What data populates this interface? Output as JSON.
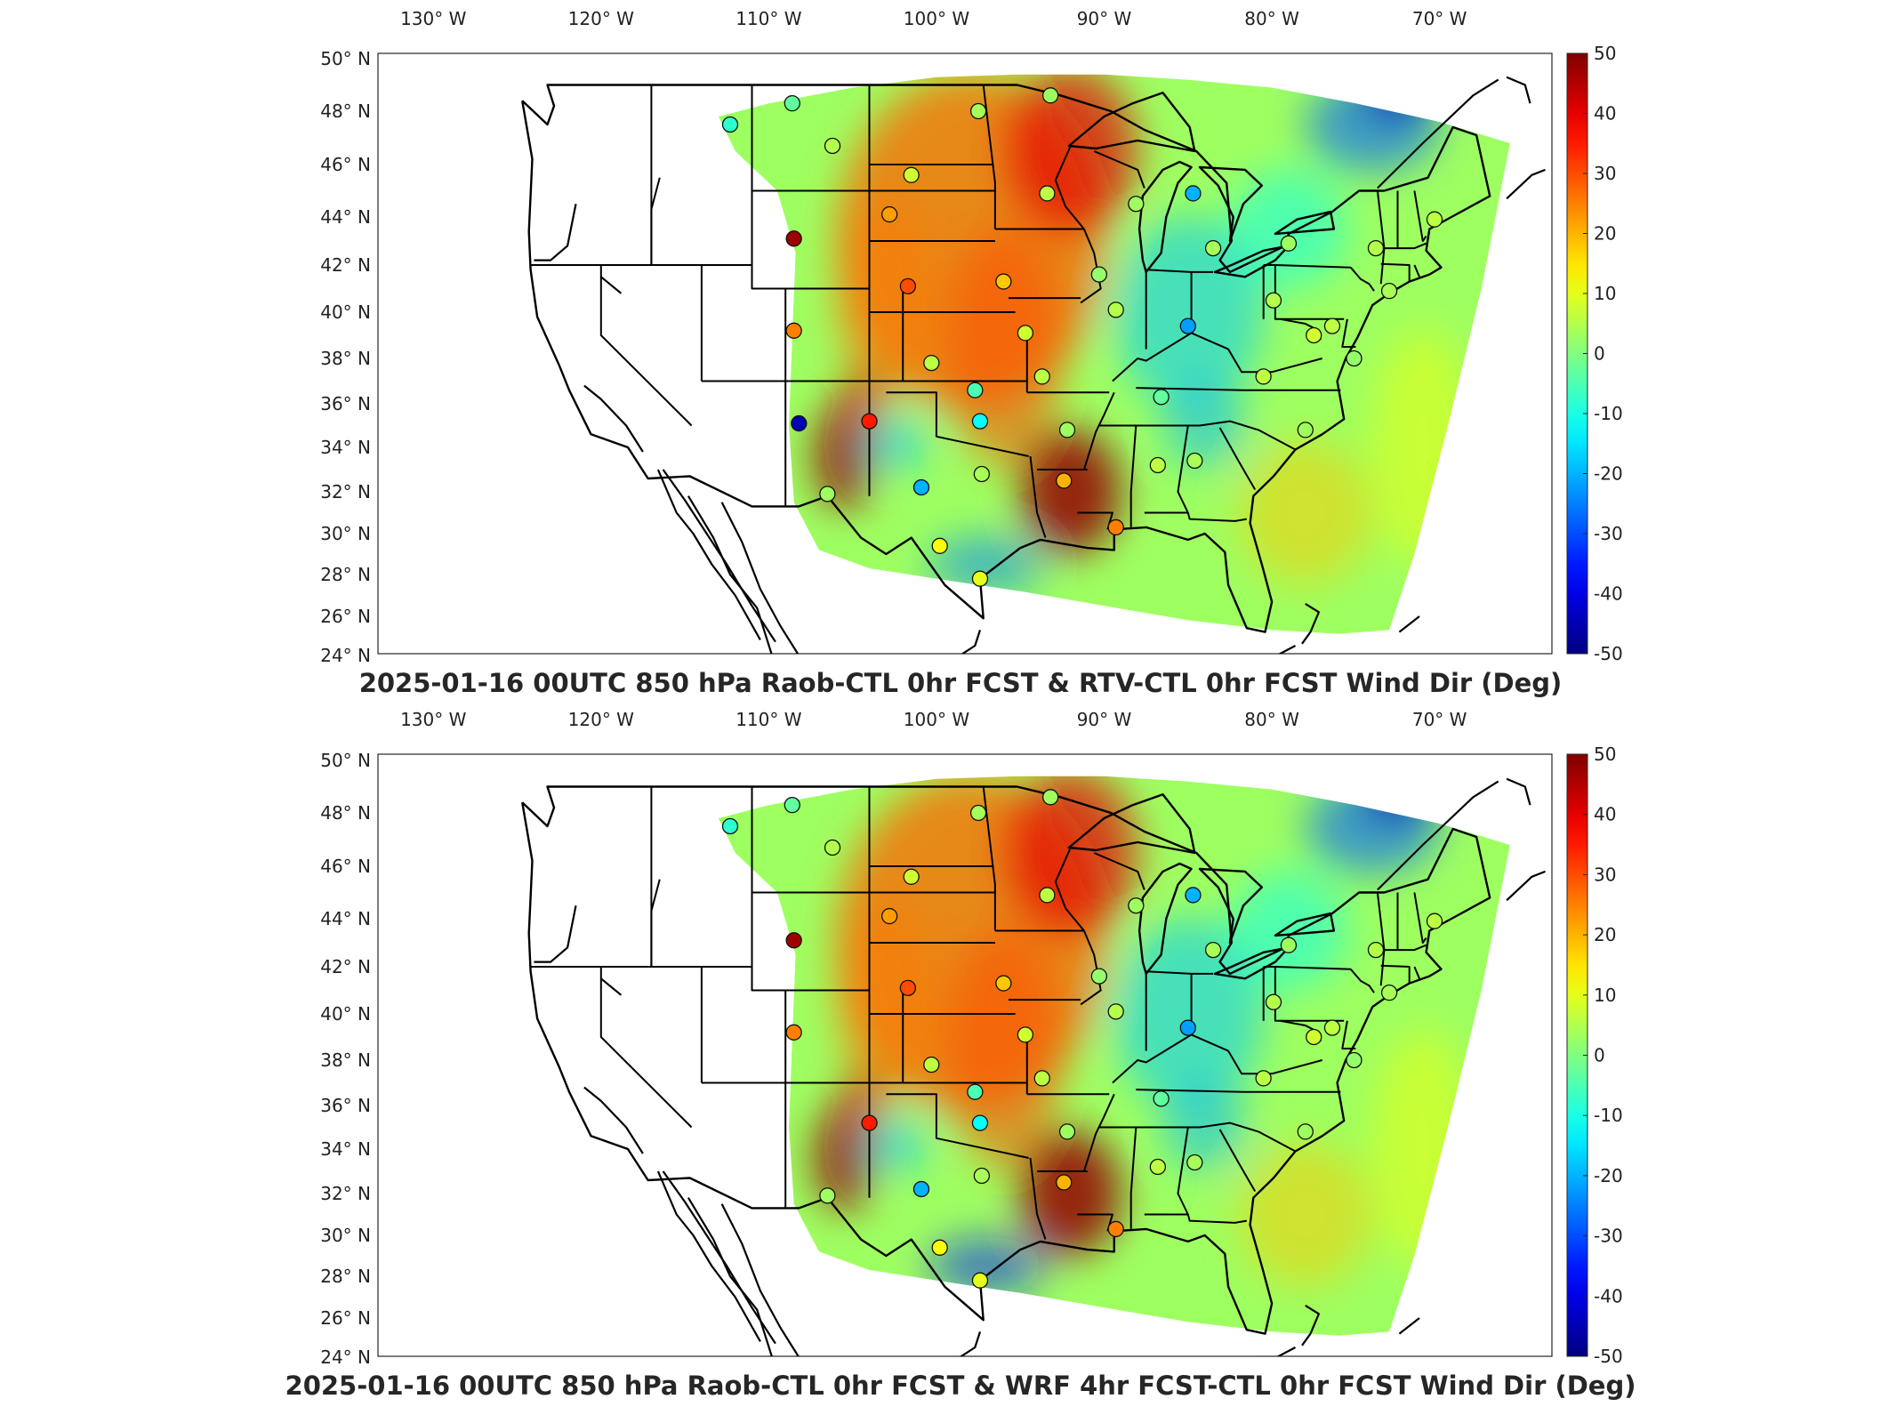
{
  "panels": [
    {
      "title": "2025-01-16 00UTC 850 hPa Raob-CTL 0hr FCST & RTV-CTL 0hr FCST Wind Dir (Deg)",
      "map_type": "wind-direction-difference",
      "stations": [
        {
          "lon": -112.3,
          "lat": 47.5,
          "value": -8
        },
        {
          "lon": -108.6,
          "lat": 48.3,
          "value": -3
        },
        {
          "lon": -106.2,
          "lat": 46.7,
          "value": 5
        },
        {
          "lon": -102.8,
          "lat": 44.1,
          "value": 22
        },
        {
          "lon": -101.5,
          "lat": 45.6,
          "value": 8
        },
        {
          "lon": -97.5,
          "lat": 48.0,
          "value": 4
        },
        {
          "lon": -93.2,
          "lat": 48.6,
          "value": 3
        },
        {
          "lon": -93.4,
          "lat": 44.9,
          "value": 6
        },
        {
          "lon": -108.5,
          "lat": 43.1,
          "value": 47
        },
        {
          "lon": -108.5,
          "lat": 39.2,
          "value": 25
        },
        {
          "lon": -108.2,
          "lat": 35.1,
          "value": -45
        },
        {
          "lon": -106.5,
          "lat": 31.9,
          "value": 3
        },
        {
          "lon": -104.0,
          "lat": 35.2,
          "value": 35
        },
        {
          "lon": -101.7,
          "lat": 41.1,
          "value": 30
        },
        {
          "lon": -100.3,
          "lat": 37.8,
          "value": 6
        },
        {
          "lon": -97.7,
          "lat": 36.6,
          "value": -5
        },
        {
          "lon": -96.0,
          "lat": 41.3,
          "value": 18
        },
        {
          "lon": -94.7,
          "lat": 39.1,
          "value": 8
        },
        {
          "lon": -93.7,
          "lat": 37.2,
          "value": 6
        },
        {
          "lon": -97.4,
          "lat": 35.2,
          "value": -12
        },
        {
          "lon": -97.3,
          "lat": 32.8,
          "value": 4
        },
        {
          "lon": -100.9,
          "lat": 32.2,
          "value": -20
        },
        {
          "lon": -99.8,
          "lat": 29.4,
          "value": 12
        },
        {
          "lon": -97.4,
          "lat": 27.8,
          "value": 10
        },
        {
          "lon": -92.2,
          "lat": 34.8,
          "value": 3
        },
        {
          "lon": -92.4,
          "lat": 32.5,
          "value": 20
        },
        {
          "lon": -89.3,
          "lat": 30.3,
          "value": 25
        },
        {
          "lon": -86.8,
          "lat": 33.2,
          "value": 6
        },
        {
          "lon": -84.6,
          "lat": 33.4,
          "value": 4
        },
        {
          "lon": -86.6,
          "lat": 36.3,
          "value": -3
        },
        {
          "lon": -90.3,
          "lat": 41.6,
          "value": 2
        },
        {
          "lon": -89.3,
          "lat": 40.1,
          "value": 5
        },
        {
          "lon": -88.1,
          "lat": 44.5,
          "value": 3
        },
        {
          "lon": -84.7,
          "lat": 44.9,
          "value": -20
        },
        {
          "lon": -83.5,
          "lat": 42.7,
          "value": 4
        },
        {
          "lon": -85.0,
          "lat": 39.4,
          "value": -22
        },
        {
          "lon": -79.9,
          "lat": 40.5,
          "value": 5
        },
        {
          "lon": -77.5,
          "lat": 39.0,
          "value": 8
        },
        {
          "lon": -80.5,
          "lat": 37.2,
          "value": 6
        },
        {
          "lon": -78.0,
          "lat": 34.8,
          "value": 3
        },
        {
          "lon": -76.4,
          "lat": 39.4,
          "value": 6
        },
        {
          "lon": -73.8,
          "lat": 42.7,
          "value": 5
        },
        {
          "lon": -79.0,
          "lat": 42.9,
          "value": 3
        },
        {
          "lon": -73.0,
          "lat": 40.9,
          "value": 4
        },
        {
          "lon": -70.3,
          "lat": 43.9,
          "value": 6
        },
        {
          "lon": -75.1,
          "lat": 38.0,
          "value": 2
        }
      ]
    },
    {
      "title": "2025-01-16 00UTC 850 hPa Raob-CTL 0hr FCST & WRF 4hr FCST-CTL 0hr FCST Wind Dir (Deg)",
      "map_type": "wind-direction-difference",
      "stations": [
        {
          "lon": -112.3,
          "lat": 47.5,
          "value": -8
        },
        {
          "lon": -108.6,
          "lat": 48.3,
          "value": -3
        },
        {
          "lon": -106.2,
          "lat": 46.7,
          "value": 5
        },
        {
          "lon": -102.8,
          "lat": 44.1,
          "value": 22
        },
        {
          "lon": -101.5,
          "lat": 45.6,
          "value": 8
        },
        {
          "lon": -97.5,
          "lat": 48.0,
          "value": 4
        },
        {
          "lon": -93.2,
          "lat": 48.6,
          "value": 3
        },
        {
          "lon": -93.4,
          "lat": 44.9,
          "value": 6
        },
        {
          "lon": -108.5,
          "lat": 43.1,
          "value": 47
        },
        {
          "lon": -108.5,
          "lat": 39.2,
          "value": 25
        },
        {
          "lon": -106.5,
          "lat": 31.9,
          "value": 3
        },
        {
          "lon": -104.0,
          "lat": 35.2,
          "value": 35
        },
        {
          "lon": -101.7,
          "lat": 41.1,
          "value": 30
        },
        {
          "lon": -100.3,
          "lat": 37.8,
          "value": 6
        },
        {
          "lon": -97.7,
          "lat": 36.6,
          "value": -5
        },
        {
          "lon": -96.0,
          "lat": 41.3,
          "value": 18
        },
        {
          "lon": -94.7,
          "lat": 39.1,
          "value": 8
        },
        {
          "lon": -93.7,
          "lat": 37.2,
          "value": 6
        },
        {
          "lon": -97.4,
          "lat": 35.2,
          "value": -12
        },
        {
          "lon": -97.3,
          "lat": 32.8,
          "value": 4
        },
        {
          "lon": -100.9,
          "lat": 32.2,
          "value": -20
        },
        {
          "lon": -99.8,
          "lat": 29.4,
          "value": 12
        },
        {
          "lon": -97.4,
          "lat": 27.8,
          "value": 10
        },
        {
          "lon": -92.2,
          "lat": 34.8,
          "value": 3
        },
        {
          "lon": -92.4,
          "lat": 32.5,
          "value": 20
        },
        {
          "lon": -89.3,
          "lat": 30.3,
          "value": 25
        },
        {
          "lon": -86.8,
          "lat": 33.2,
          "value": 6
        },
        {
          "lon": -84.6,
          "lat": 33.4,
          "value": 4
        },
        {
          "lon": -86.6,
          "lat": 36.3,
          "value": -3
        },
        {
          "lon": -90.3,
          "lat": 41.6,
          "value": 2
        },
        {
          "lon": -89.3,
          "lat": 40.1,
          "value": 5
        },
        {
          "lon": -88.1,
          "lat": 44.5,
          "value": 3
        },
        {
          "lon": -84.7,
          "lat": 44.9,
          "value": -20
        },
        {
          "lon": -83.5,
          "lat": 42.7,
          "value": 4
        },
        {
          "lon": -85.0,
          "lat": 39.4,
          "value": -22
        },
        {
          "lon": -79.9,
          "lat": 40.5,
          "value": 5
        },
        {
          "lon": -77.5,
          "lat": 39.0,
          "value": 8
        },
        {
          "lon": -80.5,
          "lat": 37.2,
          "value": 6
        },
        {
          "lon": -78.0,
          "lat": 34.8,
          "value": 3
        },
        {
          "lon": -76.4,
          "lat": 39.4,
          "value": 6
        },
        {
          "lon": -73.8,
          "lat": 42.7,
          "value": 5
        },
        {
          "lon": -79.0,
          "lat": 42.9,
          "value": 3
        },
        {
          "lon": -73.0,
          "lat": 40.9,
          "value": 4
        },
        {
          "lon": -70.3,
          "lat": 43.9,
          "value": 6
        },
        {
          "lon": -75.1,
          "lat": 38.0,
          "value": 2
        }
      ]
    }
  ],
  "lon_ticks": [
    {
      "lon": -130,
      "label": "130"
    },
    {
      "lon": -120,
      "label": "120"
    },
    {
      "lon": -110,
      "label": "110"
    },
    {
      "lon": -100,
      "label": "100"
    },
    {
      "lon": -90,
      "label": "90"
    },
    {
      "lon": -80,
      "label": "80"
    },
    {
      "lon": -70,
      "label": "70"
    }
  ],
  "lon_suffix": "W",
  "lat_ticks": [
    {
      "lat": 50,
      "label": "50"
    },
    {
      "lat": 48,
      "label": "48"
    },
    {
      "lat": 46,
      "label": "46"
    },
    {
      "lat": 44,
      "label": "44"
    },
    {
      "lat": 42,
      "label": "42"
    },
    {
      "lat": 40,
      "label": "40"
    },
    {
      "lat": 38,
      "label": "38"
    },
    {
      "lat": 36,
      "label": "36"
    },
    {
      "lat": 34,
      "label": "34"
    },
    {
      "lat": 32,
      "label": "32"
    },
    {
      "lat": 30,
      "label": "30"
    },
    {
      "lat": 28,
      "label": "28"
    },
    {
      "lat": 26,
      "label": "26"
    },
    {
      "lat": 24,
      "label": "24"
    }
  ],
  "lat_suffix": "N",
  "degree_symbol": "°",
  "colorbar": {
    "min": -50,
    "max": 50,
    "ticks": [
      "50",
      "40",
      "30",
      "20",
      "10",
      "0",
      "-10",
      "-20",
      "-30",
      "-40",
      "-50"
    ],
    "colormap": "jet"
  }
}
